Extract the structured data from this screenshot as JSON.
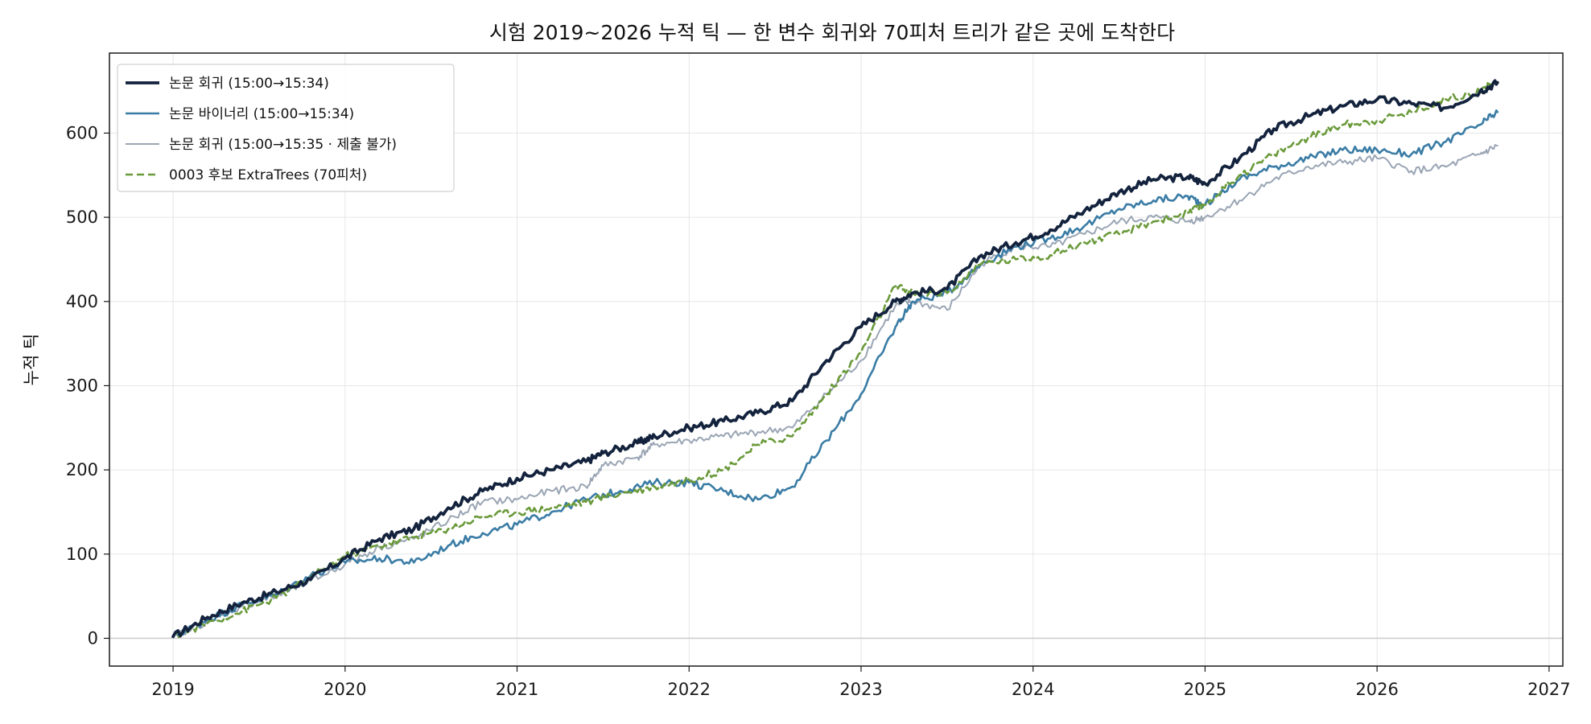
{
  "chart_data": {
    "type": "line",
    "title": "시험 2019~2026 누적 틱 — 한 변수 회귀와 70피처 트리가 같은 곳에 도착한다",
    "xlabel": "",
    "ylabel": "누적 틱",
    "xlim": [
      2018.63,
      2027.08
    ],
    "ylim": [
      -33,
      695
    ],
    "x_ticks": [
      "2019",
      "2020",
      "2021",
      "2022",
      "2023",
      "2024",
      "2025",
      "2026",
      "2027"
    ],
    "y_ticks": [
      "0",
      "100",
      "200",
      "300",
      "400",
      "500",
      "600"
    ],
    "grid": true,
    "legend_position": "top-left",
    "series": [
      {
        "name": "논문 회귀 (15:00→15:34)",
        "color": "#14233d",
        "style": "solid",
        "x": [
          2019.0,
          2019.2,
          2019.4,
          2019.6,
          2019.8,
          2020.0,
          2020.2,
          2020.4,
          2020.6,
          2020.8,
          2021.0,
          2021.2,
          2021.4,
          2021.5,
          2021.7,
          2021.8,
          2022.0,
          2022.2,
          2022.4,
          2022.6,
          2022.8,
          2023.0,
          2023.2,
          2023.3,
          2023.5,
          2023.7,
          2023.9,
          2024.1,
          2024.3,
          2024.5,
          2024.7,
          2024.9,
          2025.0,
          2025.2,
          2025.4,
          2025.6,
          2025.8,
          2026.0,
          2026.2,
          2026.4,
          2026.6,
          2026.7
        ],
        "y": [
          2,
          25,
          42,
          55,
          70,
          95,
          118,
          130,
          155,
          175,
          190,
          200,
          210,
          220,
          232,
          240,
          250,
          258,
          268,
          282,
          330,
          370,
          400,
          410,
          415,
          455,
          470,
          485,
          508,
          530,
          545,
          548,
          540,
          570,
          605,
          620,
          632,
          640,
          635,
          630,
          650,
          660
        ]
      },
      {
        "name": "논문 바이너리 (15:00→15:34)",
        "color": "#3a7ca5",
        "style": "solid",
        "x": [
          2019.0,
          2019.2,
          2019.4,
          2019.6,
          2019.8,
          2020.0,
          2020.2,
          2020.4,
          2020.6,
          2020.8,
          2021.0,
          2021.2,
          2021.4,
          2021.6,
          2021.8,
          2022.0,
          2022.2,
          2022.4,
          2022.6,
          2022.8,
          2023.0,
          2023.2,
          2023.3,
          2023.5,
          2023.7,
          2023.9,
          2024.1,
          2024.3,
          2024.5,
          2024.7,
          2024.9,
          2025.0,
          2025.2,
          2025.4,
          2025.6,
          2025.8,
          2026.0,
          2026.2,
          2026.4,
          2026.6,
          2026.7
        ],
        "y": [
          2,
          22,
          40,
          52,
          75,
          90,
          95,
          90,
          110,
          125,
          135,
          150,
          165,
          175,
          185,
          185,
          175,
          165,
          180,
          235,
          290,
          370,
          400,
          410,
          445,
          465,
          475,
          490,
          510,
          520,
          525,
          515,
          545,
          560,
          570,
          580,
          580,
          575,
          590,
          610,
          625
        ]
      },
      {
        "name": "논문 회귀 (15:00→15:35 · 제출 불가)",
        "color": "#9aa5b4",
        "style": "solid",
        "x": [
          2019.0,
          2019.2,
          2019.4,
          2019.6,
          2019.8,
          2020.0,
          2020.2,
          2020.4,
          2020.6,
          2020.8,
          2021.0,
          2021.2,
          2021.4,
          2021.5,
          2021.7,
          2021.8,
          2022.0,
          2022.2,
          2022.4,
          2022.6,
          2022.8,
          2023.0,
          2023.2,
          2023.3,
          2023.5,
          2023.7,
          2023.9,
          2024.1,
          2024.3,
          2024.5,
          2024.7,
          2024.9,
          2025.0,
          2025.2,
          2025.4,
          2025.6,
          2025.8,
          2026.0,
          2026.2,
          2026.4,
          2026.6,
          2026.7
        ],
        "y": [
          2,
          20,
          38,
          50,
          68,
          88,
          108,
          118,
          140,
          162,
          165,
          175,
          180,
          205,
          215,
          230,
          235,
          240,
          245,
          250,
          290,
          330,
          395,
          400,
          390,
          445,
          465,
          465,
          480,
          495,
          500,
          495,
          500,
          520,
          545,
          560,
          565,
          570,
          555,
          560,
          575,
          585
        ]
      },
      {
        "name": "0003 후보 ExtraTrees (70피처)",
        "color": "#6a9a3a",
        "style": "dashed",
        "x": [
          2019.0,
          2019.2,
          2019.4,
          2019.6,
          2019.8,
          2020.0,
          2020.2,
          2020.4,
          2020.6,
          2020.8,
          2021.0,
          2021.2,
          2021.4,
          2021.6,
          2021.8,
          2022.0,
          2022.2,
          2022.4,
          2022.6,
          2022.8,
          2023.0,
          2023.2,
          2023.3,
          2023.5,
          2023.7,
          2023.9,
          2024.1,
          2024.3,
          2024.5,
          2024.7,
          2024.9,
          2025.0,
          2025.2,
          2025.4,
          2025.6,
          2025.8,
          2026.0,
          2026.2,
          2026.4,
          2026.6,
          2026.7
        ],
        "y": [
          2,
          18,
          32,
          48,
          72,
          98,
          110,
          120,
          130,
          145,
          150,
          155,
          162,
          172,
          180,
          188,
          200,
          230,
          240,
          290,
          340,
          418,
          410,
          410,
          445,
          450,
          455,
          470,
          480,
          495,
          505,
          515,
          550,
          575,
          595,
          610,
          615,
          625,
          640,
          650,
          662
        ]
      }
    ]
  }
}
